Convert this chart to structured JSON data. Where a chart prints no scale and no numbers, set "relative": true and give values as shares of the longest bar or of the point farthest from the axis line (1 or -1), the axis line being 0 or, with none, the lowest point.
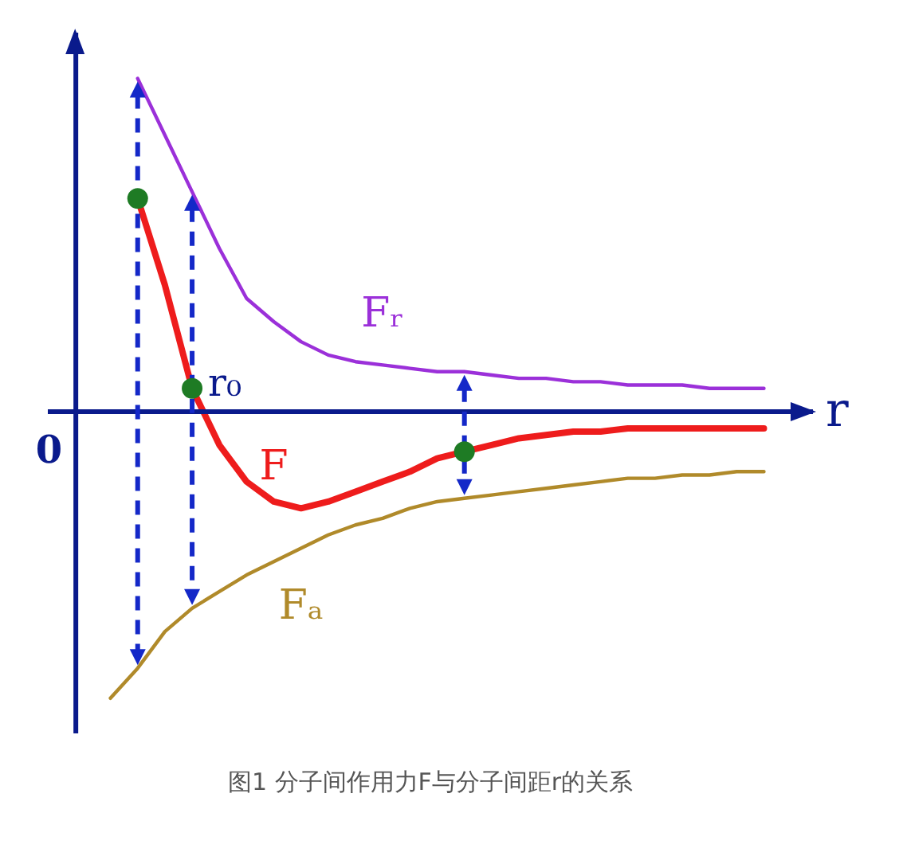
{
  "chart_data": {
    "type": "line",
    "relative": true,
    "title": "图1 分子间作用力F与分子间距r的关系",
    "xlabel": "r",
    "categories": [
      null,
      null,
      null,
      null,
      null,
      null,
      null,
      null,
      null,
      null,
      null,
      null,
      null,
      null,
      null,
      null,
      null,
      null,
      null,
      null,
      null,
      null,
      null,
      null,
      null
    ],
    "series": [
      {
        "name": "Fᵣ",
        "color": "#9b30d9",
        "values": [
          null,
          1.0,
          0.83,
          0.66,
          0.49,
          0.34,
          0.27,
          0.21,
          0.17,
          0.15,
          0.14,
          0.13,
          0.12,
          0.12,
          0.11,
          0.1,
          0.1,
          0.09,
          0.09,
          0.08,
          0.08,
          0.08,
          0.07,
          0.07,
          0.07
        ]
      },
      {
        "name": "F",
        "color": "#ee1c1c",
        "values": [
          null,
          0.64,
          0.38,
          0.07,
          -0.1,
          -0.21,
          -0.27,
          -0.29,
          -0.27,
          -0.24,
          -0.21,
          -0.18,
          -0.14,
          -0.12,
          -0.1,
          -0.08,
          -0.07,
          -0.06,
          -0.06,
          -0.05,
          -0.05,
          -0.05,
          -0.05,
          -0.05,
          -0.05
        ]
      },
      {
        "name": "Fₐ",
        "color": "#b08a2a",
        "values": [
          -0.86,
          -0.77,
          -0.66,
          -0.59,
          -0.54,
          -0.49,
          -0.45,
          -0.41,
          -0.37,
          -0.34,
          -0.32,
          -0.29,
          -0.27,
          -0.26,
          -0.25,
          -0.24,
          -0.23,
          -0.22,
          -0.21,
          -0.2,
          -0.2,
          -0.19,
          -0.19,
          -0.18,
          -0.18
        ]
      }
    ],
    "ref_lines": [
      {
        "axis": "y",
        "value": 0,
        "color": "#0a1a8c"
      }
    ],
    "annotations": [
      "0",
      "r₀"
    ]
  }
}
